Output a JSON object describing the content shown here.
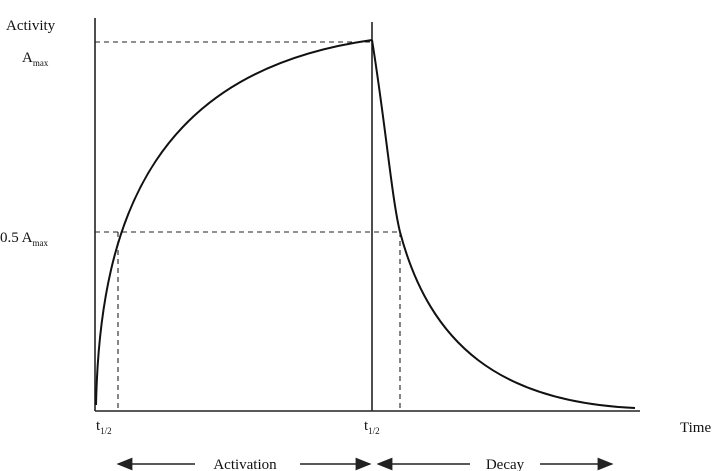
{
  "axes": {
    "y_label": "Activity",
    "x_label": "Time"
  },
  "levels": [
    {
      "label": "A",
      "subscript": "max"
    },
    {
      "label": "0.5 A",
      "subscript": "max"
    }
  ],
  "markers": [
    {
      "label": "t",
      "subscript": "1/2"
    },
    {
      "label": "t",
      "subscript": "1/2"
    }
  ],
  "phases": [
    "Activation",
    "Decay"
  ]
}
